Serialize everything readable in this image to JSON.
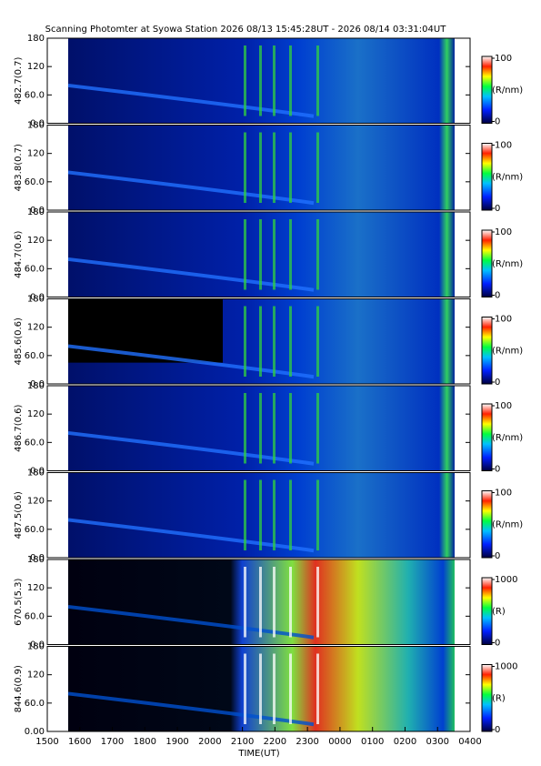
{
  "chart_data": {
    "type": "keogram",
    "title": "Scanning Photomter at Syowa Station 2026 08/13 15:45:28UT - 2026 08/14 03:31:04UT",
    "xlabel": "TIME(UT)",
    "xlim": [
      15,
      28
    ],
    "xticks": [
      {
        "value": 15,
        "label": "1500"
      },
      {
        "value": 16,
        "label": "1600"
      },
      {
        "value": 17,
        "label": "1700"
      },
      {
        "value": 18,
        "label": "1800"
      },
      {
        "value": 19,
        "label": "1900"
      },
      {
        "value": 20,
        "label": "2000"
      },
      {
        "value": 21,
        "label": "2100"
      },
      {
        "value": 22,
        "label": "2200"
      },
      {
        "value": 23,
        "label": "2300"
      },
      {
        "value": 24,
        "label": "0000"
      },
      {
        "value": 25,
        "label": "0100"
      },
      {
        "value": 26,
        "label": "0200"
      },
      {
        "value": 27,
        "label": "0300"
      },
      {
        "value": 28,
        "label": "0400"
      }
    ],
    "panels": [
      {
        "ylabel": "482.7(0.7)",
        "ylim": [
          0,
          180
        ],
        "yticks": [
          {
            "value": 0,
            "label": "0.0"
          },
          {
            "value": 60,
            "label": "60.0"
          },
          120,
          180
        ],
        "clim": [
          0,
          100
        ],
        "cticks": [
          0,
          100
        ],
        "unit": "(R/nm)"
      },
      {
        "ylabel": "483.8(0.7)",
        "ylim": [
          0,
          180
        ],
        "yticks": [
          {
            "value": 0,
            "label": "0.0"
          },
          {
            "value": 60,
            "label": "60.0"
          },
          120,
          180
        ],
        "clim": [
          0,
          100
        ],
        "cticks": [
          0,
          100
        ],
        "unit": "(R/nm)"
      },
      {
        "ylabel": "484.7(0.6)",
        "ylim": [
          0,
          180
        ],
        "yticks": [
          {
            "value": 0,
            "label": "0.0"
          },
          {
            "value": 60,
            "label": "60.0"
          },
          120,
          180
        ],
        "clim": [
          0,
          100
        ],
        "cticks": [
          0,
          100
        ],
        "unit": "(R/nm)"
      },
      {
        "ylabel": "485.6(0.6)",
        "ylim": [
          0,
          180
        ],
        "yticks": [
          {
            "value": 0,
            "label": "0.0"
          },
          {
            "value": 60,
            "label": "60.0"
          },
          120,
          180
        ],
        "clim": [
          0,
          100
        ],
        "cticks": [
          0,
          100
        ],
        "unit": "(R/nm)"
      },
      {
        "ylabel": "486.7(0.6)",
        "ylim": [
          0,
          180
        ],
        "yticks": [
          {
            "value": 0,
            "label": "0.0"
          },
          {
            "value": 60,
            "label": "60.0"
          },
          120,
          180
        ],
        "clim": [
          0,
          100
        ],
        "cticks": [
          0,
          100
        ],
        "unit": "(R/nm)"
      },
      {
        "ylabel": "487.5(0.6)",
        "ylim": [
          0,
          180
        ],
        "yticks": [
          {
            "value": 0,
            "label": "0.0"
          },
          {
            "value": 60,
            "label": "60.0"
          },
          120,
          180
        ],
        "clim": [
          0,
          100
        ],
        "cticks": [
          0,
          100
        ],
        "unit": "(R/nm)"
      },
      {
        "ylabel": "670.5(5.3)",
        "ylim": [
          0,
          180
        ],
        "yticks": [
          {
            "value": 0,
            "label": "0.0"
          },
          {
            "value": 60,
            "label": "60.0"
          },
          120,
          180
        ],
        "clim": [
          0,
          1000
        ],
        "cticks": [
          0,
          1000
        ],
        "unit": "(R)"
      },
      {
        "ylabel": "844.6(0.9)",
        "ylim": [
          0,
          180
        ],
        "yticks": [
          {
            "value": 0,
            "label": "0.00"
          },
          {
            "value": 60,
            "label": "60.0"
          },
          120,
          180
        ],
        "clim": [
          0,
          1000
        ],
        "cticks": [
          0,
          1000
        ],
        "unit": "(R)"
      }
    ]
  }
}
